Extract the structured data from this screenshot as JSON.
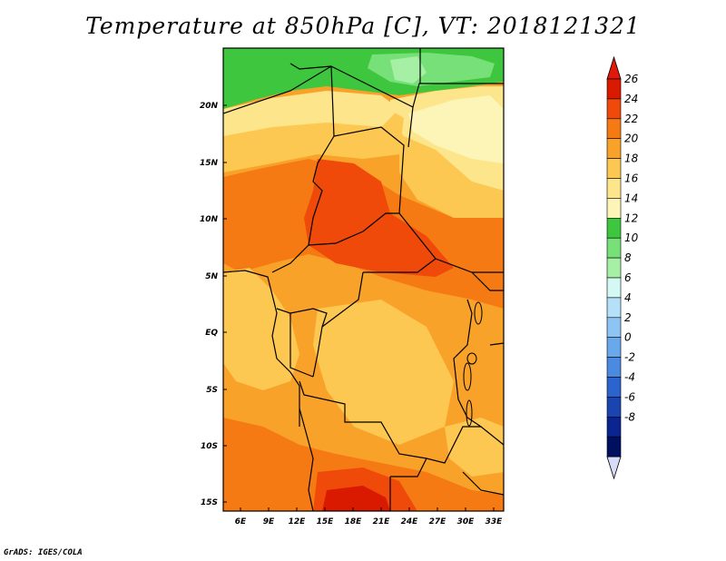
{
  "title": "Temperature at 850hPa [C], VT: 2018121321",
  "credit": "GrADS: IGES/COLA",
  "map": {
    "lat_labels": [
      "20N",
      "15N",
      "10N",
      "5N",
      "EQ",
      "5S",
      "10S",
      "15S"
    ],
    "lon_labels": [
      "6E",
      "9E",
      "12E",
      "15E",
      "18E",
      "21E",
      "24E",
      "27E",
      "30E",
      "33E"
    ]
  },
  "colorbar": {
    "labels": [
      "26",
      "24",
      "22",
      "20",
      "18",
      "16",
      "14",
      "12",
      "10",
      "8",
      "6",
      "4",
      "2",
      "0",
      "-2",
      "-4",
      "-6",
      "-8"
    ],
    "colors": [
      "#d91a00",
      "#f04a0a",
      "#f57a14",
      "#f9a22a",
      "#fcc852",
      "#fde58c",
      "#fdf5b7",
      "#3ec73e",
      "#78e078",
      "#a6f0a6",
      "#d4f8f4",
      "#b4e0f8",
      "#8cc4f4",
      "#6aa8ec",
      "#4a8ae0",
      "#2a64cc",
      "#1a44b0",
      "#0a2490",
      "#001060"
    ],
    "triangle_top": "#e0190a",
    "triangle_bottom": "#d8dcf8"
  }
}
